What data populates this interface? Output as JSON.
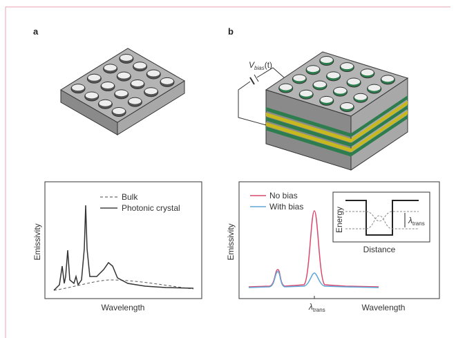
{
  "panel_a": {
    "label": "a",
    "legend": [
      "Bulk",
      "Photonic crystal"
    ],
    "y_label": "Emissivity",
    "x_label": "Wavelength"
  },
  "panel_b": {
    "label": "b",
    "voltage": {
      "symbol": "V",
      "subscript": "bias",
      "suffix": "(t)"
    },
    "legend": [
      "No bias",
      "With bias"
    ],
    "y_label": "Emissivity",
    "x_label": "Wavelength",
    "x_tick": {
      "symbol": "λ",
      "subscript": "trans"
    },
    "inset": {
      "y_label": "Energy",
      "x_label": "Distance",
      "marker": {
        "symbol": "λ",
        "subscript": "trans"
      }
    }
  }
}
